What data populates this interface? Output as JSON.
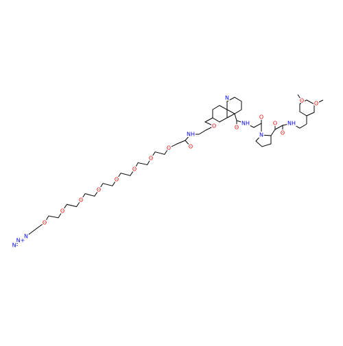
{
  "atoms": [
    "N-",
    "N+",
    "N",
    "O",
    "O",
    "O",
    "O",
    "O",
    "O",
    "O",
    "O",
    "O",
    "NH",
    "O",
    "N",
    "O",
    "NH",
    "O",
    "N",
    "O",
    "O",
    "NH",
    "O",
    "O"
  ]
}
